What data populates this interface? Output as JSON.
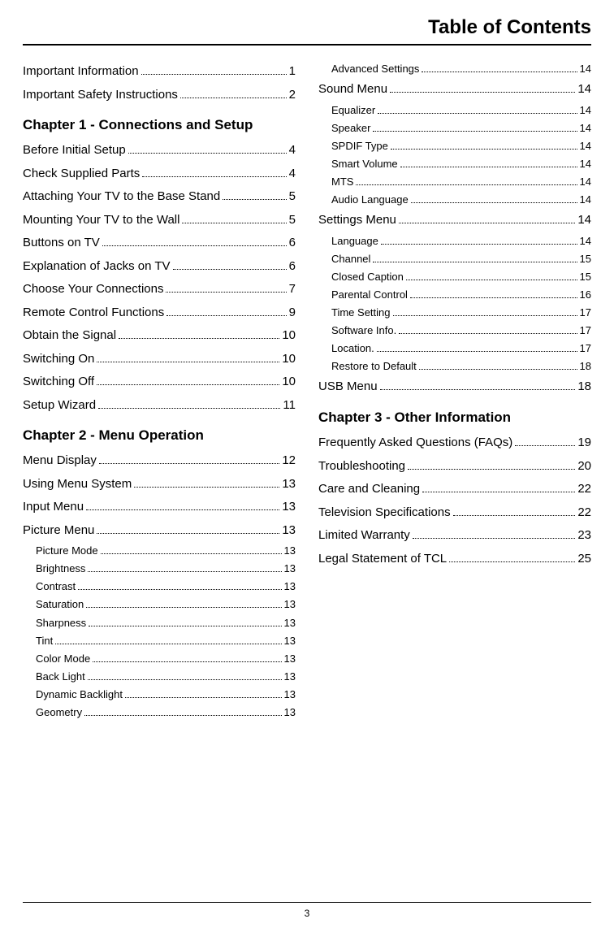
{
  "title": "Table of Contents",
  "page_number": "3",
  "left": [
    {
      "t": "entry",
      "label": "Important Information",
      "pg": "1"
    },
    {
      "t": "entry",
      "label": "Important Safety Instructions",
      "pg": "2"
    },
    {
      "t": "heading",
      "label": "Chapter 1 - Connections and Setup"
    },
    {
      "t": "entry",
      "label": "Before Initial Setup",
      "pg": "4"
    },
    {
      "t": "entry",
      "label": "Check Supplied Parts",
      "pg": "4"
    },
    {
      "t": "entry",
      "label": "Attaching Your TV to the Base Stand",
      "pg": "5"
    },
    {
      "t": "entry",
      "label": "Mounting Your TV to the Wall",
      "pg": "5"
    },
    {
      "t": "entry",
      "label": "Buttons on TV",
      "pg": "6"
    },
    {
      "t": "entry",
      "label": "Explanation of Jacks on TV",
      "pg": "6"
    },
    {
      "t": "entry",
      "label": "Choose Your Connections",
      "pg": "7"
    },
    {
      "t": "entry",
      "label": "Remote Control Functions",
      "pg": "9"
    },
    {
      "t": "entry",
      "label": "Obtain the Signal",
      "pg": "10"
    },
    {
      "t": "entry",
      "label": "Switching On",
      "pg": "10"
    },
    {
      "t": "entry",
      "label": "Switching Off",
      "pg": "10"
    },
    {
      "t": "entry",
      "label": "Setup Wizard",
      "pg": "11"
    },
    {
      "t": "heading",
      "label": "Chapter 2 - Menu Operation"
    },
    {
      "t": "entry",
      "label": "Menu Display",
      "pg": "12"
    },
    {
      "t": "entry",
      "label": "Using Menu System",
      "pg": "13"
    },
    {
      "t": "entry",
      "label": "Input Menu",
      "pg": "13"
    },
    {
      "t": "entry",
      "label": "Picture Menu",
      "pg": "13"
    },
    {
      "t": "sub",
      "label": "Picture Mode",
      "pg": "13"
    },
    {
      "t": "sub",
      "label": "Brightness",
      "pg": "13"
    },
    {
      "t": "sub",
      "label": "Contrast",
      "pg": "13"
    },
    {
      "t": "sub",
      "label": "Saturation",
      "pg": "13"
    },
    {
      "t": "sub",
      "label": "Sharpness",
      "pg": "13"
    },
    {
      "t": "sub",
      "label": "Tint",
      "pg": "13"
    },
    {
      "t": "sub",
      "label": "Color Mode",
      "pg": "13"
    },
    {
      "t": "sub",
      "label": "Back Light",
      "pg": "13"
    },
    {
      "t": "sub",
      "label": "Dynamic Backlight",
      "pg": "13"
    },
    {
      "t": "sub",
      "label": "Geometry",
      "pg": "13"
    }
  ],
  "right": [
    {
      "t": "sub",
      "label": "Advanced Settings",
      "pg": "14"
    },
    {
      "t": "entry",
      "label": "Sound Menu",
      "pg": "14"
    },
    {
      "t": "sub",
      "label": "Equalizer",
      "pg": "14"
    },
    {
      "t": "sub",
      "label": "Speaker",
      "pg": "14"
    },
    {
      "t": "sub",
      "label": "SPDIF Type",
      "pg": "14"
    },
    {
      "t": "sub",
      "label": "Smart Volume",
      "pg": "14"
    },
    {
      "t": "sub",
      "label": "MTS",
      "pg": "14"
    },
    {
      "t": "sub",
      "label": "Audio Language",
      "pg": "14"
    },
    {
      "t": "entry",
      "label": "Settings Menu",
      "pg": "14"
    },
    {
      "t": "sub",
      "label": "Language",
      "pg": "14"
    },
    {
      "t": "sub",
      "label": "Channel",
      "pg": "15"
    },
    {
      "t": "sub",
      "label": "Closed Caption",
      "pg": "15"
    },
    {
      "t": "sub",
      "label": "Parental Control",
      "pg": "16"
    },
    {
      "t": "sub",
      "label": "Time Setting",
      "pg": "17"
    },
    {
      "t": "sub",
      "label": "Software Info.",
      "pg": "17"
    },
    {
      "t": "sub",
      "label": "Location.",
      "pg": "17"
    },
    {
      "t": "sub",
      "label": "Restore to Default",
      "pg": "18"
    },
    {
      "t": "entry",
      "label": "USB Menu",
      "pg": "18"
    },
    {
      "t": "heading",
      "label": "Chapter 3 - Other Information"
    },
    {
      "t": "entry",
      "label": "Frequently Asked Questions (FAQs)",
      "pg": "19"
    },
    {
      "t": "entry",
      "label": "Troubleshooting",
      "pg": "20"
    },
    {
      "t": "entry",
      "label": "Care and Cleaning",
      "pg": "22"
    },
    {
      "t": "entry",
      "label": "Television Specifications",
      "pg": "22"
    },
    {
      "t": "entry",
      "label": "Limited Warranty",
      "pg": "23"
    },
    {
      "t": "entry",
      "label": "Legal Statement of TCL",
      "pg": "25"
    }
  ]
}
